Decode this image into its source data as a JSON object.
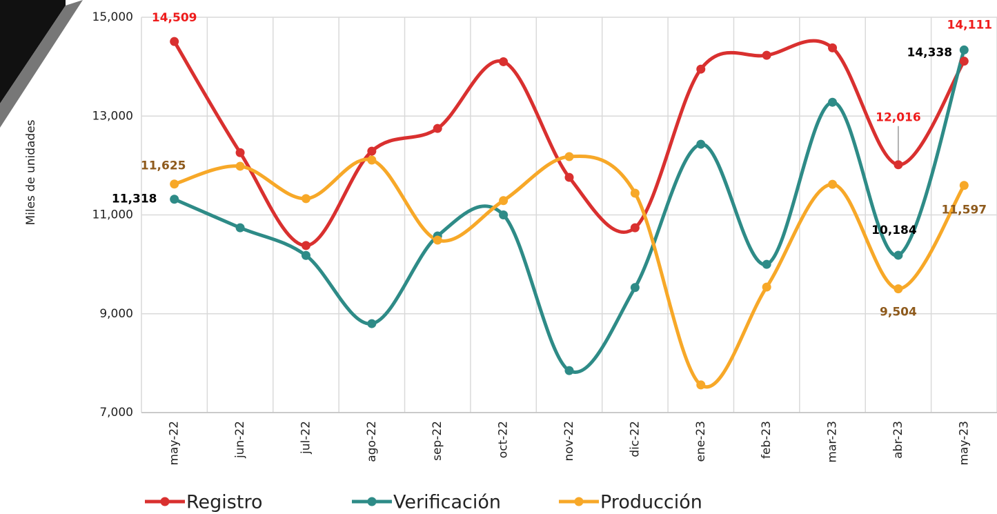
{
  "chart_data": {
    "type": "line",
    "y_label": "Miles de unidades",
    "categories": [
      "may-22",
      "jun-22",
      "jul-22",
      "ago-22",
      "sep-22",
      "oct-22",
      "nov-22",
      "dic-22",
      "ene-23",
      "feb-23",
      "mar-23",
      "abr-23",
      "may-23"
    ],
    "ylim": [
      7000,
      15000
    ],
    "yticks": [
      {
        "value": 7000,
        "label": "7,000"
      },
      {
        "value": 9000,
        "label": "9,000"
      },
      {
        "value": 11000,
        "label": "11,000"
      },
      {
        "value": 13000,
        "label": "13,000"
      },
      {
        "value": 15000,
        "label": "15,000"
      }
    ],
    "grid": true,
    "smooth": true,
    "legend": "bottom",
    "series": [
      {
        "name": "Registro",
        "color": "#d9302f",
        "label_color": "#ee1c1c",
        "values": [
          14509,
          12260,
          10380,
          12290,
          12750,
          14100,
          11760,
          10740,
          13950,
          14230,
          14380,
          12016,
          14111
        ],
        "value_labels": [
          "14,509",
          null,
          null,
          null,
          null,
          null,
          null,
          null,
          null,
          null,
          null,
          "12,016",
          "14,111"
        ]
      },
      {
        "name": "Verificación",
        "color": "#2e8b87",
        "label_color": "#000000",
        "values": [
          11318,
          10740,
          10180,
          8800,
          10575,
          11000,
          7850,
          9530,
          12430,
          10000,
          13280,
          10184,
          14338
        ],
        "value_labels": [
          "11,318",
          null,
          null,
          null,
          null,
          null,
          null,
          null,
          null,
          null,
          null,
          "10,184",
          "14,338"
        ]
      },
      {
        "name": "Producción",
        "color": "#f7a828",
        "label_color": "#8e5a1c",
        "values": [
          11625,
          11985,
          11330,
          12110,
          10490,
          11290,
          12180,
          11440,
          7560,
          9540,
          11620,
          9504,
          11597
        ],
        "value_labels": [
          "11,625",
          null,
          null,
          null,
          null,
          null,
          null,
          null,
          null,
          null,
          null,
          "9,504",
          "11,597"
        ]
      }
    ]
  }
}
